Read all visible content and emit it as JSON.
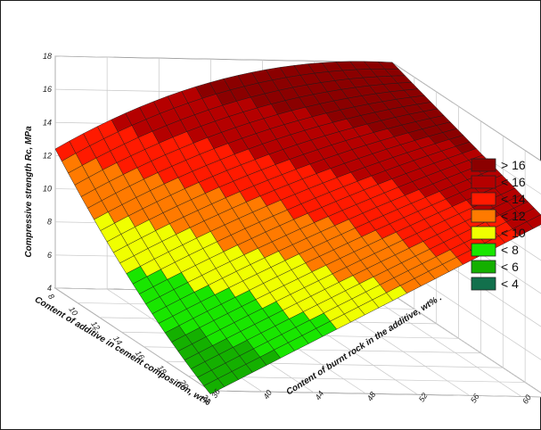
{
  "chart_data": {
    "type": "surface3d",
    "zlabel": "Compressive strength Rc, MPa",
    "xlabel": "Content of additive in cement composition, wt%",
    "ylabel": "Content of burnt rock in the additive, wt% .",
    "x_ticks": [
      "8",
      "10",
      "12",
      "14",
      "16",
      "18",
      "20",
      "22"
    ],
    "y_ticks": [
      "36",
      "40",
      "44",
      "48",
      "52",
      "56",
      "60",
      "62"
    ],
    "z_ticks": [
      "4",
      "6",
      "8",
      "10",
      "12",
      "14",
      "16",
      "18"
    ],
    "xlim": [
      8,
      22
    ],
    "ylim": [
      36,
      62
    ],
    "zlim": [
      4,
      18
    ],
    "grid": true,
    "legend_position": "right",
    "legend": [
      {
        "label": "> 16",
        "color": "#8b0000"
      },
      {
        "label": "< 16",
        "color": "#b50000"
      },
      {
        "label": "< 14",
        "color": "#ff1a00"
      },
      {
        "label": "< 12",
        "color": "#ff7a00"
      },
      {
        "label": "< 10",
        "color": "#f0ff00"
      },
      {
        "label": "< 8",
        "color": "#19e600"
      },
      {
        "label": "< 6",
        "color": "#14b000"
      },
      {
        "label": "< 4",
        "color": "#12704c"
      }
    ],
    "surface_samples": [
      {
        "x": 8,
        "y": 36,
        "z": 12.4
      },
      {
        "x": 8,
        "y": 49,
        "z": 16.5
      },
      {
        "x": 8,
        "y": 62,
        "z": 18.0
      },
      {
        "x": 15,
        "y": 36,
        "z": 7.5
      },
      {
        "x": 15,
        "y": 49,
        "z": 9.5
      },
      {
        "x": 15,
        "y": 62,
        "z": 11.0
      },
      {
        "x": 22,
        "y": 36,
        "z": 3.8
      },
      {
        "x": 22,
        "y": 49,
        "z": 6.5
      },
      {
        "x": 22,
        "y": 62,
        "z": 8.3
      }
    ]
  }
}
